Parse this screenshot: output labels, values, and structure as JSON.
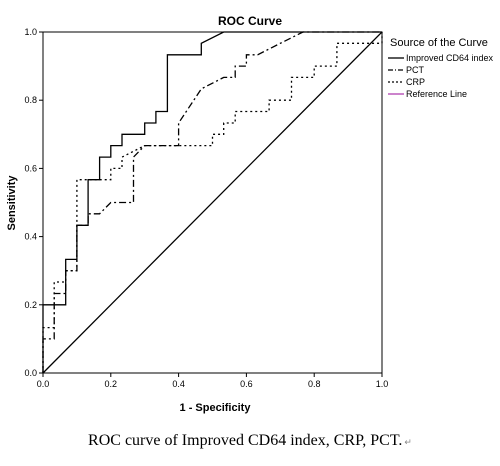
{
  "caption": "ROC curve of Improved CD64 index, CRP, PCT.",
  "caption_mark": "↵",
  "chart_data": {
    "type": "line",
    "title": "ROC Curve",
    "xlabel": "1 - Specificity",
    "ylabel": "Sensitivity",
    "xlim": [
      0,
      1
    ],
    "ylim": [
      0,
      1
    ],
    "xticks": [
      "0.0",
      "0.2",
      "0.4",
      "0.6",
      "0.8",
      "1.0"
    ],
    "yticks": [
      "0.0",
      "0.2",
      "0.4",
      "0.6",
      "0.8",
      "1.0"
    ],
    "legend_title": "Source of the Curve",
    "legend_position": "right",
    "series": [
      {
        "name": "Improved CD64 index",
        "style": "solid",
        "color": "#000000",
        "points": [
          [
            0,
            0
          ],
          [
            0,
            0.2
          ],
          [
            0.067,
            0.2
          ],
          [
            0.067,
            0.333
          ],
          [
            0.1,
            0.333
          ],
          [
            0.1,
            0.433
          ],
          [
            0.133,
            0.433
          ],
          [
            0.133,
            0.567
          ],
          [
            0.167,
            0.567
          ],
          [
            0.167,
            0.633
          ],
          [
            0.2,
            0.633
          ],
          [
            0.2,
            0.667
          ],
          [
            0.233,
            0.667
          ],
          [
            0.233,
            0.7
          ],
          [
            0.3,
            0.7
          ],
          [
            0.3,
            0.733
          ],
          [
            0.333,
            0.733
          ],
          [
            0.333,
            0.767
          ],
          [
            0.367,
            0.767
          ],
          [
            0.367,
            0.933
          ],
          [
            0.467,
            0.933
          ],
          [
            0.467,
            0.967
          ],
          [
            0.533,
            1.0
          ],
          [
            1.0,
            1.0
          ]
        ]
      },
      {
        "name": "PCT",
        "style": "dashdot",
        "color": "#000000",
        "points": [
          [
            0,
            0
          ],
          [
            0,
            0.1
          ],
          [
            0.033,
            0.1
          ],
          [
            0.033,
            0.233
          ],
          [
            0.067,
            0.233
          ],
          [
            0.067,
            0.3
          ],
          [
            0.1,
            0.3
          ],
          [
            0.1,
            0.433
          ],
          [
            0.133,
            0.433
          ],
          [
            0.133,
            0.467
          ],
          [
            0.167,
            0.467
          ],
          [
            0.2,
            0.5
          ],
          [
            0.267,
            0.5
          ],
          [
            0.267,
            0.633
          ],
          [
            0.3,
            0.667
          ],
          [
            0.4,
            0.667
          ],
          [
            0.4,
            0.733
          ],
          [
            0.467,
            0.833
          ],
          [
            0.533,
            0.867
          ],
          [
            0.567,
            0.867
          ],
          [
            0.567,
            0.9
          ],
          [
            0.6,
            0.9
          ],
          [
            0.6,
            0.933
          ],
          [
            0.633,
            0.933
          ],
          [
            0.7,
            0.967
          ],
          [
            0.767,
            1.0
          ],
          [
            1.0,
            1.0
          ]
        ]
      },
      {
        "name": "CRP",
        "style": "dotted",
        "color": "#000000",
        "points": [
          [
            0,
            0
          ],
          [
            0,
            0.133
          ],
          [
            0.033,
            0.133
          ],
          [
            0.033,
            0.267
          ],
          [
            0.067,
            0.267
          ],
          [
            0.067,
            0.3
          ],
          [
            0.1,
            0.3
          ],
          [
            0.1,
            0.567
          ],
          [
            0.133,
            0.567
          ],
          [
            0.133,
            0.567
          ],
          [
            0.2,
            0.567
          ],
          [
            0.2,
            0.6
          ],
          [
            0.233,
            0.6
          ],
          [
            0.233,
            0.633
          ],
          [
            0.3,
            0.667
          ],
          [
            0.5,
            0.667
          ],
          [
            0.5,
            0.7
          ],
          [
            0.533,
            0.7
          ],
          [
            0.533,
            0.733
          ],
          [
            0.567,
            0.733
          ],
          [
            0.567,
            0.767
          ],
          [
            0.667,
            0.767
          ],
          [
            0.667,
            0.8
          ],
          [
            0.733,
            0.8
          ],
          [
            0.733,
            0.867
          ],
          [
            0.8,
            0.867
          ],
          [
            0.8,
            0.9
          ],
          [
            0.867,
            0.9
          ],
          [
            0.867,
            0.967
          ],
          [
            1.0,
            0.967
          ],
          [
            1.0,
            1.0
          ]
        ]
      },
      {
        "name": "Reference Line",
        "style": "solid",
        "color": "#000000",
        "legend_color": "#b040b0",
        "points": [
          [
            0,
            0
          ],
          [
            1,
            1
          ]
        ]
      }
    ]
  }
}
